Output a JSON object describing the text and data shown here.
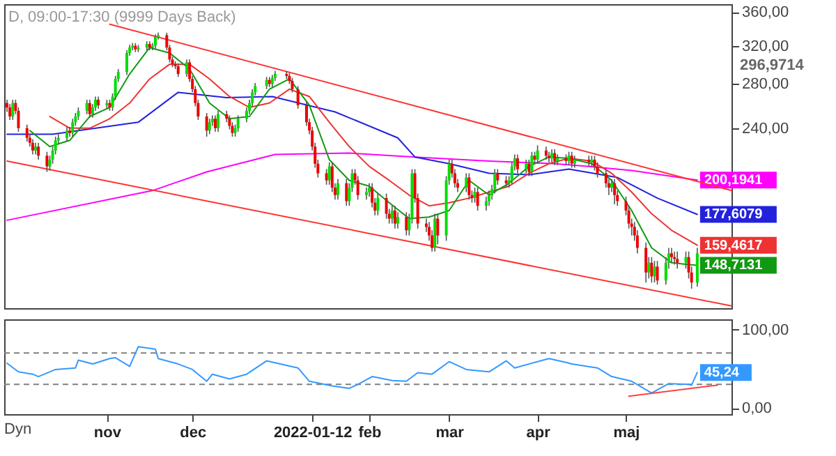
{
  "chart_data": [
    {
      "type": "candlestick",
      "title": "D, 09:00-17:30 (9999 Days Back)",
      "log": true,
      "tick_labels": "y",
      "xlim": [
        "2021-09-26",
        "2022-06-08"
      ],
      "ylim": [
        128,
        370
      ],
      "yticks": [
        {
          "value": 240,
          "label": "240,00"
        },
        {
          "value": 280,
          "label": "280,00"
        },
        {
          "value": 320,
          "label": "320,00"
        },
        {
          "value": 360,
          "label": "360,00"
        }
      ],
      "x": [
        "2021-09-27",
        "2021-09-28",
        "2021-09-29",
        "2021-09-30",
        "2021-10-01",
        "2021-10-04",
        "2021-10-05",
        "2021-10-06",
        "2021-10-07",
        "2021-10-08",
        "2021-10-11",
        "2021-10-12",
        "2021-10-13",
        "2021-10-14",
        "2021-10-15",
        "2021-10-18",
        "2021-10-19",
        "2021-10-20",
        "2021-10-21",
        "2021-10-22",
        "2021-10-25",
        "2021-10-26",
        "2021-10-27",
        "2021-10-28",
        "2021-10-29",
        "2021-11-01",
        "2021-11-02",
        "2021-11-03",
        "2021-11-04",
        "2021-11-05",
        "2021-11-08",
        "2021-11-09",
        "2021-11-10",
        "2021-11-11",
        "2021-11-12",
        "2021-11-15",
        "2021-11-16",
        "2021-11-17",
        "2021-11-18",
        "2021-11-19",
        "2021-11-22",
        "2021-11-23",
        "2021-11-24",
        "2021-11-25",
        "2021-11-26",
        "2021-11-29",
        "2021-11-30",
        "2021-12-01",
        "2021-12-02",
        "2021-12-03",
        "2021-12-06",
        "2021-12-07",
        "2021-12-08",
        "2021-12-09",
        "2021-12-10",
        "2021-12-13",
        "2021-12-14",
        "2021-12-15",
        "2021-12-16",
        "2021-12-17",
        "2021-12-20",
        "2021-12-21",
        "2021-12-22",
        "2021-12-23",
        "2021-12-27",
        "2021-12-28",
        "2021-12-29",
        "2021-12-30",
        "2022-01-03",
        "2022-01-04",
        "2022-01-05",
        "2022-01-07",
        "2022-01-10",
        "2022-01-11",
        "2022-01-12",
        "2022-01-13",
        "2022-01-14",
        "2022-01-17",
        "2022-01-18",
        "2022-01-19",
        "2022-01-20",
        "2022-01-21",
        "2022-01-24",
        "2022-01-25",
        "2022-01-26",
        "2022-01-27",
        "2022-01-28",
        "2022-01-31",
        "2022-02-01",
        "2022-02-02",
        "2022-02-03",
        "2022-02-04",
        "2022-02-07",
        "2022-02-08",
        "2022-02-09",
        "2022-02-10",
        "2022-02-11",
        "2022-02-14",
        "2022-02-15",
        "2022-02-16",
        "2022-02-17",
        "2022-02-18",
        "2022-02-21",
        "2022-02-22",
        "2022-02-23",
        "2022-02-24",
        "2022-02-25",
        "2022-02-28",
        "2022-03-01",
        "2022-03-02",
        "2022-03-03",
        "2022-03-04",
        "2022-03-07",
        "2022-03-08",
        "2022-03-09",
        "2022-03-10",
        "2022-03-11",
        "2022-03-14",
        "2022-03-15",
        "2022-03-16",
        "2022-03-17",
        "2022-03-18",
        "2022-03-21",
        "2022-03-22",
        "2022-03-23",
        "2022-03-24",
        "2022-03-25",
        "2022-03-28",
        "2022-03-29",
        "2022-03-30",
        "2022-03-31",
        "2022-04-01",
        "2022-04-04",
        "2022-04-05",
        "2022-04-06",
        "2022-04-07",
        "2022-04-08",
        "2022-04-11",
        "2022-04-12",
        "2022-04-13",
        "2022-04-14",
        "2022-04-19",
        "2022-04-20",
        "2022-04-21",
        "2022-04-22",
        "2022-04-25",
        "2022-04-26",
        "2022-04-27",
        "2022-04-28",
        "2022-04-29",
        "2022-05-02",
        "2022-05-03",
        "2022-05-04",
        "2022-05-05",
        "2022-05-06",
        "2022-05-09",
        "2022-05-10",
        "2022-05-11",
        "2022-05-12",
        "2022-05-13",
        "2022-05-16",
        "2022-05-17",
        "2022-05-18",
        "2022-05-19",
        "2022-05-20",
        "2022-05-23",
        "2022-05-24",
        "2022-05-25",
        "2022-05-27"
      ],
      "ohlc": [
        [
          262,
          265,
          254,
          258
        ],
        [
          258,
          261,
          247,
          250
        ],
        [
          250,
          265,
          247,
          262
        ],
        [
          262,
          265,
          252,
          255
        ],
        [
          255,
          258,
          237,
          240
        ],
        [
          240,
          243,
          229,
          232
        ],
        [
          232,
          235,
          225,
          228
        ],
        [
          228,
          231,
          219,
          222
        ],
        [
          222,
          228,
          219,
          225
        ],
        [
          225,
          228,
          215,
          218
        ],
        [
          218,
          221,
          206,
          210
        ],
        [
          210,
          218,
          207,
          215
        ],
        [
          215,
          225,
          212,
          222
        ],
        [
          222,
          233,
          219,
          230
        ],
        [
          230,
          235,
          227,
          232
        ],
        [
          232,
          241,
          229,
          238
        ],
        [
          238,
          241,
          233,
          236
        ],
        [
          236,
          248,
          233,
          245
        ],
        [
          245,
          253,
          242,
          250
        ],
        [
          250,
          258,
          247,
          255
        ],
        [
          255,
          265,
          252,
          262
        ],
        [
          262,
          265,
          249,
          252
        ],
        [
          252,
          261,
          249,
          258
        ],
        [
          258,
          268,
          255,
          265
        ],
        [
          265,
          268,
          257,
          260
        ],
        [
          260,
          265,
          257,
          262
        ],
        [
          262,
          265,
          255,
          258
        ],
        [
          258,
          271,
          255,
          268
        ],
        [
          268,
          288,
          265,
          285
        ],
        [
          285,
          295,
          282,
          292
        ],
        [
          292,
          315,
          289,
          312
        ],
        [
          312,
          321,
          309,
          318
        ],
        [
          318,
          323,
          315,
          320
        ],
        [
          320,
          323,
          313,
          316
        ],
        [
          316,
          321,
          313,
          318
        ],
        [
          318,
          325,
          315,
          322
        ],
        [
          322,
          325,
          315,
          318
        ],
        [
          318,
          323,
          315,
          320
        ],
        [
          320,
          333,
          317,
          330
        ],
        [
          330,
          335,
          327,
          332
        ],
        [
          332,
          335,
          315,
          318
        ],
        [
          318,
          321,
          302,
          305
        ],
        [
          305,
          308,
          297,
          300
        ],
        [
          300,
          303,
          295,
          298
        ],
        [
          298,
          301,
          287,
          290
        ],
        [
          290,
          305,
          287,
          302
        ],
        [
          302,
          305,
          282,
          285
        ],
        [
          285,
          288,
          272,
          275
        ],
        [
          275,
          278,
          259,
          262
        ],
        [
          262,
          265,
          247,
          250
        ],
        [
          250,
          253,
          233,
          238
        ],
        [
          238,
          248,
          235,
          245
        ],
        [
          245,
          251,
          242,
          248
        ],
        [
          248,
          251,
          237,
          240
        ],
        [
          240,
          255,
          237,
          252
        ],
        [
          252,
          255,
          245,
          248
        ],
        [
          248,
          251,
          239,
          242
        ],
        [
          242,
          245,
          233,
          236
        ],
        [
          236,
          243,
          233,
          240
        ],
        [
          240,
          251,
          237,
          248
        ],
        [
          248,
          258,
          245,
          255
        ],
        [
          255,
          265,
          252,
          262
        ],
        [
          262,
          275,
          259,
          272
        ],
        [
          272,
          281,
          269,
          278
        ],
        [
          278,
          287,
          275,
          284
        ],
        [
          284,
          287,
          277,
          280
        ],
        [
          280,
          289,
          277,
          286
        ],
        [
          286,
          293,
          283,
          290
        ],
        [
          290,
          293,
          285,
          288
        ],
        [
          288,
          291,
          280,
          283
        ],
        [
          283,
          286,
          272,
          275
        ],
        [
          275,
          278,
          257,
          260
        ],
        [
          260,
          263,
          242,
          245
        ],
        [
          245,
          248,
          235,
          238
        ],
        [
          238,
          241,
          222,
          225
        ],
        [
          225,
          228,
          209,
          212
        ],
        [
          212,
          215,
          202,
          205
        ],
        [
          205,
          208,
          197,
          200
        ],
        [
          200,
          213,
          197,
          210
        ],
        [
          210,
          213,
          192,
          195
        ],
        [
          195,
          198,
          187,
          190
        ],
        [
          190,
          201,
          187,
          198
        ],
        [
          198,
          201,
          183,
          186
        ],
        [
          186,
          198,
          183,
          195
        ],
        [
          195,
          208,
          192,
          205
        ],
        [
          205,
          208,
          197,
          200
        ],
        [
          200,
          203,
          187,
          190
        ],
        [
          190,
          195,
          187,
          192
        ],
        [
          192,
          198,
          189,
          195
        ],
        [
          195,
          198,
          182,
          185
        ],
        [
          185,
          188,
          177,
          180
        ],
        [
          180,
          191,
          177,
          188
        ],
        [
          188,
          191,
          175,
          178
        ],
        [
          178,
          181,
          172,
          175
        ],
        [
          175,
          183,
          172,
          180
        ],
        [
          180,
          183,
          169,
          172
        ],
        [
          172,
          179,
          169,
          176
        ],
        [
          176,
          179,
          165,
          168
        ],
        [
          168,
          178,
          165,
          175
        ],
        [
          175,
          208,
          172,
          205
        ],
        [
          205,
          208,
          185,
          188
        ],
        [
          188,
          191,
          169,
          172
        ],
        [
          172,
          175,
          167,
          170
        ],
        [
          170,
          173,
          162,
          165
        ],
        [
          165,
          168,
          156,
          158
        ],
        [
          158,
          178,
          156,
          175
        ],
        [
          175,
          178,
          160,
          165
        ],
        [
          165,
          203,
          162,
          200
        ],
        [
          200,
          215,
          197,
          212
        ],
        [
          212,
          215,
          202,
          205
        ],
        [
          205,
          208,
          195,
          198
        ],
        [
          198,
          201,
          192,
          195
        ],
        [
          195,
          205,
          192,
          202
        ],
        [
          202,
          205,
          187,
          190
        ],
        [
          190,
          193,
          185,
          188
        ],
        [
          188,
          195,
          185,
          192
        ],
        [
          192,
          195,
          180,
          183
        ],
        [
          183,
          189,
          180,
          186
        ],
        [
          186,
          193,
          183,
          190
        ],
        [
          190,
          197,
          187,
          194
        ],
        [
          194,
          208,
          191,
          205
        ],
        [
          205,
          208,
          197,
          200
        ],
        [
          200,
          203,
          195,
          198
        ],
        [
          198,
          203,
          195,
          200
        ],
        [
          200,
          213,
          197,
          210
        ],
        [
          210,
          219,
          207,
          216
        ],
        [
          216,
          219,
          205,
          208
        ],
        [
          208,
          215,
          205,
          212
        ],
        [
          212,
          215,
          203,
          206
        ],
        [
          206,
          221,
          203,
          218
        ],
        [
          218,
          221,
          212,
          215
        ],
        [
          215,
          226,
          212,
          222
        ],
        [
          222,
          225,
          215,
          218
        ],
        [
          218,
          221,
          213,
          216
        ],
        [
          216,
          223,
          213,
          220
        ],
        [
          220,
          223,
          211,
          214
        ],
        [
          214,
          219,
          211,
          216
        ],
        [
          216,
          219,
          211,
          214
        ],
        [
          214,
          221,
          211,
          218
        ],
        [
          218,
          221,
          209,
          212
        ],
        [
          212,
          218,
          209,
          215
        ],
        [
          215,
          218,
          210,
          213
        ],
        [
          213,
          218,
          210,
          215
        ],
        [
          215,
          218,
          207,
          210
        ],
        [
          210,
          213,
          202,
          205
        ],
        [
          205,
          208,
          195,
          198
        ],
        [
          198,
          201,
          190,
          195
        ],
        [
          195,
          201,
          192,
          198
        ],
        [
          198,
          201,
          184,
          190
        ],
        [
          190,
          193,
          183,
          186
        ],
        [
          186,
          189,
          177,
          180
        ],
        [
          180,
          183,
          169,
          172
        ],
        [
          172,
          175,
          165,
          170
        ],
        [
          170,
          173,
          162,
          165
        ],
        [
          165,
          168,
          155,
          158
        ],
        [
          158,
          161,
          140,
          145
        ],
        [
          145,
          153,
          142,
          150
        ],
        [
          150,
          153,
          140,
          143
        ],
        [
          143,
          151,
          140,
          148
        ],
        [
          148,
          151,
          139,
          141
        ],
        [
          141,
          153,
          139,
          150
        ],
        [
          150,
          158,
          147,
          155
        ],
        [
          155,
          158,
          150,
          153
        ],
        [
          153,
          156,
          149,
          152
        ],
        [
          152,
          156,
          147,
          150
        ],
        [
          150,
          156,
          147,
          153
        ],
        [
          153,
          156,
          142,
          145
        ],
        [
          145,
          148,
          137,
          140
        ],
        [
          140,
          158,
          138,
          155
        ]
      ],
      "colors": [
        "#ee0000",
        "#ee0000",
        "#00dd00",
        "#ee0000",
        "#ee0000",
        "#ee0000",
        "#ee0000",
        "#ee0000",
        "#00dd00",
        "#ee0000",
        "#ee0000",
        "#00dd00",
        "#00dd00",
        "#00dd00",
        "#00dd00",
        "#00dd00",
        "#ee0000",
        "#00dd00",
        "#00dd00",
        "#00dd00",
        "#00dd00",
        "#ee0000",
        "#00dd00",
        "#00dd00",
        "#ee0000",
        "#00dd00",
        "#ee0000",
        "#00dd00",
        "#00dd00",
        "#00dd00",
        "#00dd00",
        "#00dd00",
        "#00dd00",
        "#ee0000",
        "#00dd00",
        "#00dd00",
        "#ee0000",
        "#00dd00",
        "#00dd00",
        "#00dd00",
        "#ee0000",
        "#ee0000",
        "#ee0000",
        "#ee0000",
        "#ee0000",
        "#00dd00",
        "#ee0000",
        "#ee0000",
        "#ee0000",
        "#ee0000",
        "#ee0000",
        "#00dd00",
        "#00dd00",
        "#ee0000",
        "#00dd00",
        "#ee0000",
        "#ee0000",
        "#ee0000",
        "#00dd00",
        "#00dd00",
        "#00dd00",
        "#00dd00",
        "#00dd00",
        "#00dd00",
        "#00dd00",
        "#ee0000",
        "#00dd00",
        "#00dd00",
        "#ee0000",
        "#ee0000",
        "#ee0000",
        "#ee0000",
        "#ee0000",
        "#ee0000",
        "#ee0000",
        "#ee0000",
        "#ee0000",
        "#ee0000",
        "#00dd00",
        "#ee0000",
        "#ee0000",
        "#00dd00",
        "#ee0000",
        "#00dd00",
        "#00dd00",
        "#ee0000",
        "#ee0000",
        "#00dd00",
        "#00dd00",
        "#ee0000",
        "#ee0000",
        "#00dd00",
        "#ee0000",
        "#ee0000",
        "#00dd00",
        "#ee0000",
        "#00dd00",
        "#ee0000",
        "#00dd00",
        "#00dd00",
        "#ee0000",
        "#ee0000",
        "#ee0000",
        "#ee0000",
        "#ee0000",
        "#00dd00",
        "#ee0000",
        "#00dd00",
        "#00dd00",
        "#ee0000",
        "#ee0000",
        "#ee0000",
        "#00dd00",
        "#ee0000",
        "#ee0000",
        "#00dd00",
        "#ee0000",
        "#00dd00",
        "#00dd00",
        "#00dd00",
        "#00dd00",
        "#ee0000",
        "#ee0000",
        "#00dd00",
        "#00dd00",
        "#00dd00",
        "#ee0000",
        "#00dd00",
        "#ee0000",
        "#00dd00",
        "#ee0000",
        "#00dd00",
        "#ee0000",
        "#ee0000",
        "#00dd00",
        "#ee0000",
        "#00dd00",
        "#ee0000",
        "#00dd00",
        "#ee0000",
        "#00dd00",
        "#ee0000",
        "#00dd00",
        "#ee0000",
        "#ee0000",
        "#ee0000",
        "#ee0000",
        "#00dd00",
        "#ee0000",
        "#ee0000",
        "#ee0000",
        "#ee0000",
        "#ee0000",
        "#ee0000",
        "#ee0000",
        "#ee0000",
        "#00dd00",
        "#ee0000",
        "#00dd00",
        "#ee0000",
        "#00dd00",
        "#00dd00",
        "#ee0000",
        "#ee0000",
        "#ee0000",
        "#00dd00",
        "#ee0000",
        "#ee0000",
        "#00dd00"
      ],
      "series": [
        {
          "type": "line",
          "color": "#ff00ff",
          "x": [
            "2021-09-27",
            "2021-11-17",
            "2021-12-06",
            "2021-12-30",
            "2022-01-25",
            "2022-02-17",
            "2022-03-15",
            "2022-04-07",
            "2022-04-19",
            "2022-05-04",
            "2022-05-27"
          ],
          "values": [
            174,
            193,
            206,
            219,
            220,
            217,
            214,
            212,
            210,
            207,
            200.1941
          ],
          "value_labels": [
            null,
            null,
            null,
            null,
            null,
            null,
            null,
            null,
            null,
            null,
            "200,1941"
          ]
        },
        {
          "type": "line",
          "color": "#2222dd",
          "x": [
            "2021-09-27",
            "2021-10-13",
            "2021-11-12",
            "2021-11-26",
            "2021-12-13",
            "2021-12-29",
            "2022-01-20",
            "2022-02-11",
            "2022-02-17",
            "2022-03-01",
            "2022-03-15",
            "2022-03-29",
            "2022-04-12",
            "2022-04-29",
            "2022-05-13",
            "2022-05-27"
          ],
          "values": [
            235,
            235,
            245,
            272,
            267,
            268,
            254,
            232,
            217,
            212,
            205,
            204,
            208,
            202,
            188,
            177.6079
          ],
          "value_labels": [
            null,
            null,
            null,
            null,
            null,
            null,
            null,
            null,
            null,
            null,
            null,
            null,
            null,
            null,
            null,
            "177,6079"
          ]
        },
        {
          "type": "line",
          "color": "#ee3333",
          "x": [
            "2021-10-12",
            "2021-10-19",
            "2021-10-26",
            "2021-11-02",
            "2021-11-09",
            "2021-11-16",
            "2021-11-23",
            "2021-11-30",
            "2021-12-07",
            "2021-12-14",
            "2021-12-21",
            "2021-12-28",
            "2022-01-04",
            "2022-01-11",
            "2022-01-18",
            "2022-01-25",
            "2022-02-01",
            "2022-02-08",
            "2022-02-15",
            "2022-02-22",
            "2022-03-01",
            "2022-03-08",
            "2022-03-15",
            "2022-03-22",
            "2022-03-29",
            "2022-04-05",
            "2022-04-12",
            "2022-04-20",
            "2022-04-27",
            "2022-05-04",
            "2022-05-11",
            "2022-05-18",
            "2022-05-27"
          ],
          "values": [
            250,
            240,
            240,
            248,
            262,
            285,
            300,
            300,
            285,
            268,
            258,
            262,
            275,
            268,
            245,
            225,
            210,
            200,
            190,
            183,
            185,
            188,
            192,
            196,
            205,
            212,
            216,
            214,
            205,
            192,
            178,
            168,
            159.4617
          ],
          "value_labels": [
            null,
            null,
            null,
            null,
            null,
            null,
            null,
            null,
            null,
            null,
            null,
            null,
            null,
            null,
            null,
            null,
            null,
            null,
            null,
            null,
            null,
            null,
            null,
            null,
            null,
            null,
            null,
            null,
            null,
            null,
            null,
            null,
            "159,4617"
          ]
        },
        {
          "type": "line",
          "color": "#119911",
          "x": [
            "2021-10-05",
            "2021-10-12",
            "2021-10-19",
            "2021-10-26",
            "2021-11-02",
            "2021-11-09",
            "2021-11-16",
            "2021-11-23",
            "2021-11-30",
            "2021-12-07",
            "2021-12-14",
            "2021-12-21",
            "2021-12-28",
            "2022-01-04",
            "2022-01-11",
            "2022-01-18",
            "2022-01-25",
            "2022-02-01",
            "2022-02-08",
            "2022-02-15",
            "2022-02-22",
            "2022-03-01",
            "2022-03-08",
            "2022-03-15",
            "2022-03-22",
            "2022-03-29",
            "2022-04-05",
            "2022-04-12",
            "2022-04-20",
            "2022-04-27",
            "2022-05-04",
            "2022-05-11",
            "2022-05-18",
            "2022-05-24",
            "2022-05-27"
          ],
          "values": [
            238,
            225,
            230,
            250,
            258,
            290,
            318,
            312,
            295,
            262,
            248,
            250,
            275,
            285,
            260,
            215,
            200,
            196,
            185,
            175,
            176,
            180,
            200,
            190,
            198,
            210,
            217,
            216,
            212,
            200,
            180,
            158,
            150,
            149,
            148.7131
          ],
          "value_labels": [
            null,
            null,
            null,
            null,
            null,
            null,
            null,
            null,
            null,
            null,
            null,
            null,
            null,
            null,
            null,
            null,
            null,
            null,
            null,
            null,
            null,
            null,
            null,
            null,
            null,
            null,
            null,
            null,
            null,
            null,
            null,
            null,
            null,
            null,
            "148,7131"
          ]
        },
        {
          "type": "line",
          "color": "#ff3333",
          "x": [
            "2021-11-02",
            "2022-06-08"
          ],
          "values": [
            345,
            193
          ]
        },
        {
          "type": "line",
          "color": "#ff3333",
          "x": [
            "2021-09-27",
            "2022-06-08"
          ],
          "values": [
            214,
            129
          ]
        }
      ],
      "annotations": [
        "296,9714"
      ]
    },
    {
      "type": "line",
      "tick_labels": true,
      "xlim": [
        "2021-09-26",
        "2022-06-08"
      ],
      "xticks": [
        {
          "value": "2021-11-01",
          "label": "nov"
        },
        {
          "value": "2021-12-01",
          "label": "dec"
        },
        {
          "value": "2022-01-12",
          "label": "2022-01-12"
        },
        {
          "value": "2022-02-01",
          "label": "feb"
        },
        {
          "value": "2022-03-01",
          "label": "mar"
        },
        {
          "value": "2022-04-01",
          "label": "apr"
        },
        {
          "value": "2022-05-02",
          "label": "maj"
        }
      ],
      "ylim": [
        -8,
        113
      ],
      "yticks": [
        {
          "value": 0,
          "label": "0,00"
        },
        {
          "value": 100,
          "label": "100,00"
        }
      ],
      "series": [
        {
          "color": "#3399ff",
          "x": [
            "2021-09-27",
            "2021-10-01",
            "2021-10-06",
            "2021-10-08",
            "2021-10-14",
            "2021-10-21",
            "2021-10-22",
            "2021-10-27",
            "2021-11-02",
            "2021-11-04",
            "2021-11-09",
            "2021-11-12",
            "2021-11-18",
            "2021-11-19",
            "2021-11-26",
            "2021-12-01",
            "2021-12-06",
            "2021-12-08",
            "2021-12-14",
            "2021-12-20",
            "2021-12-27",
            "2022-01-07",
            "2022-01-11",
            "2022-01-19",
            "2022-01-25",
            "2022-01-28",
            "2022-02-02",
            "2022-02-09",
            "2022-02-14",
            "2022-02-18",
            "2022-02-23",
            "2022-03-01",
            "2022-03-07",
            "2022-03-15",
            "2022-03-21",
            "2022-03-24",
            "2022-04-05",
            "2022-04-11",
            "2022-04-13",
            "2022-04-22",
            "2022-04-27",
            "2022-05-04",
            "2022-05-11",
            "2022-05-17",
            "2022-05-24",
            "2022-05-25",
            "2022-05-27"
          ],
          "values": [
            57,
            46,
            43,
            40,
            49,
            51,
            61,
            56,
            63,
            64,
            53,
            78,
            75,
            63,
            56,
            49,
            34,
            43,
            37,
            43,
            60,
            51,
            34,
            28,
            25,
            30,
            40,
            35,
            34,
            45,
            43,
            59,
            49,
            46,
            60,
            51,
            63,
            58,
            56,
            51,
            40,
            34,
            19,
            31,
            30,
            29,
            45.24
          ],
          "value_labels": [
            null,
            null,
            null,
            null,
            null,
            null,
            null,
            null,
            null,
            null,
            null,
            null,
            null,
            null,
            null,
            null,
            null,
            null,
            null,
            null,
            null,
            null,
            null,
            null,
            null,
            null,
            null,
            null,
            null,
            null,
            null,
            null,
            null,
            null,
            null,
            null,
            null,
            null,
            null,
            null,
            null,
            null,
            null,
            null,
            null,
            null,
            "45,24"
          ]
        },
        {
          "color": "#ff4040",
          "x": [
            "2022-05-03",
            "2022-06-03"
          ],
          "values": [
            15,
            29
          ]
        }
      ],
      "ref_lines": [
        {
          "axis": "y",
          "value": 70,
          "color": "#808080",
          "line_style": "dashed"
        },
        {
          "axis": "y",
          "value": 30,
          "color": "#808080",
          "line_style": "dashed"
        }
      ],
      "annotations": [
        "Dyn"
      ]
    }
  ]
}
